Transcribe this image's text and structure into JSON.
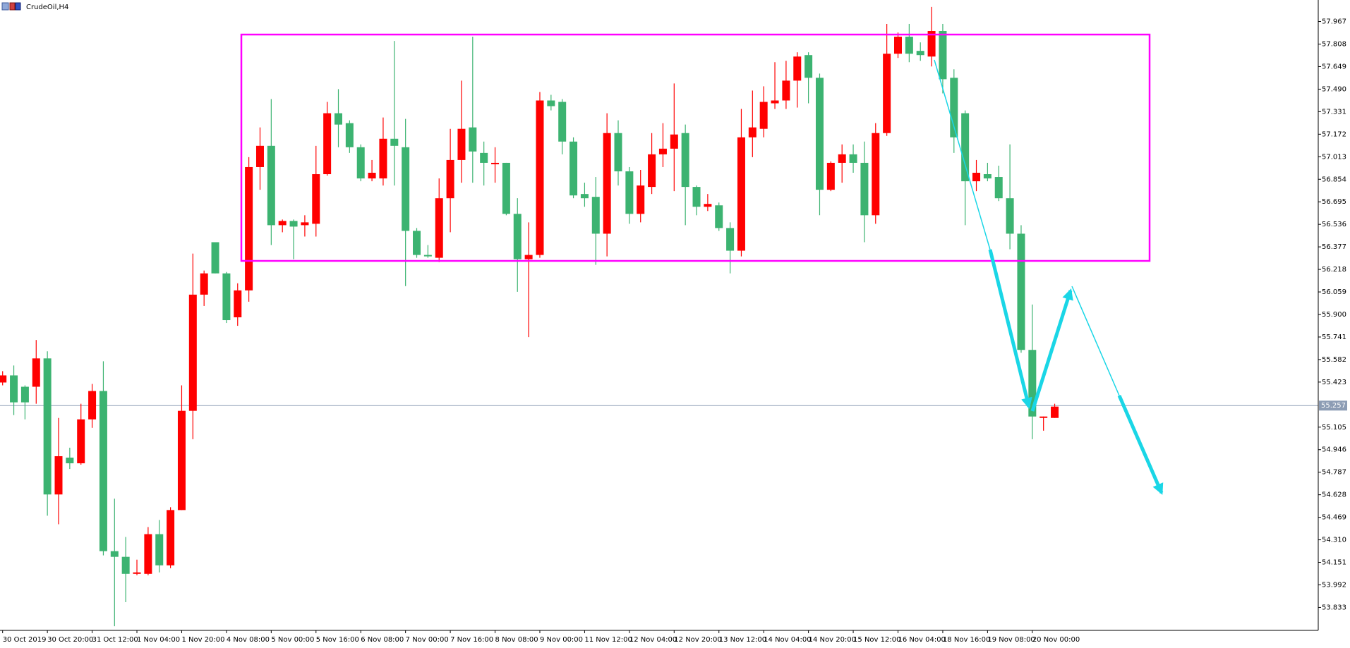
{
  "chart_data": {
    "type": "candlestick",
    "title": "CrudeOil,H4",
    "categories": [
      "30 Oct 2019",
      null,
      null,
      null,
      "30 Oct 20:00",
      null,
      null,
      null,
      "31 Oct 12:00",
      null,
      null,
      null,
      "1 Nov 04:00",
      null,
      null,
      null,
      "1 Nov 20:00",
      null,
      null,
      null,
      "4 Nov 08:00",
      null,
      null,
      null,
      "5 Nov 00:00",
      null,
      null,
      null,
      "5 Nov 16:00",
      null,
      null,
      null,
      "6 Nov 08:00",
      null,
      null,
      null,
      "7 Nov 00:00",
      null,
      null,
      null,
      "7 Nov 16:00",
      null,
      null,
      null,
      "8 Nov 08:00",
      null,
      null,
      null,
      "9 Nov 00:00",
      null,
      null,
      null,
      "11 Nov 12:00",
      null,
      null,
      null,
      "12 Nov 04:00",
      null,
      null,
      null,
      "12 Nov 20:00",
      null,
      null,
      null,
      "13 Nov 12:00",
      null,
      null,
      null,
      "14 Nov 04:00",
      null,
      null,
      null,
      "14 Nov 20:00",
      null,
      null,
      null,
      "15 Nov 12:00",
      null,
      null,
      null,
      "16 Nov 04:00",
      null,
      null,
      null,
      "18 Nov 16:00",
      null,
      null,
      null,
      "19 Nov 08:00",
      null,
      null,
      null,
      "20 Nov 00:00",
      null,
      null
    ],
    "open": [
      55.42,
      55.47,
      55.39,
      55.39,
      55.59,
      54.63,
      54.89,
      54.85,
      55.16,
      55.36,
      54.23,
      54.19,
      54.07,
      54.07,
      54.35,
      54.13,
      54.52,
      55.22,
      56.04,
      56.41,
      56.19,
      55.88,
      56.07,
      56.94,
      57.09,
      56.53,
      56.56,
      56.53,
      56.54,
      56.89,
      57.32,
      57.25,
      57.08,
      56.86,
      56.86,
      57.14,
      57.08,
      56.49,
      56.32,
      56.3,
      56.72,
      56.99,
      57.22,
      57.04,
      56.96,
      56.97,
      56.61,
      56.29,
      56.32,
      57.41,
      57.4,
      57.12,
      56.75,
      56.73,
      56.47,
      57.18,
      56.91,
      56.61,
      56.8,
      57.03,
      57.07,
      57.18,
      56.8,
      56.66,
      56.67,
      56.51,
      56.35,
      57.15,
      57.21,
      57.39,
      57.41,
      57.55,
      57.73,
      57.57,
      56.78,
      56.97,
      57.03,
      56.97,
      56.6,
      57.18,
      57.74,
      57.86,
      57.76,
      57.72,
      57.9,
      57.57,
      57.32,
      56.84,
      56.89,
      56.87,
      56.72,
      56.47,
      55.65,
      55.17,
      55.17
    ],
    "high": [
      55.5,
      55.54,
      55.4,
      55.72,
      55.64,
      55.17,
      54.96,
      55.27,
      55.41,
      55.57,
      54.6,
      54.33,
      54.17,
      54.4,
      54.45,
      54.54,
      55.4,
      56.33,
      56.21,
      56.41,
      56.2,
      56.12,
      57.01,
      57.22,
      57.42,
      56.57,
      56.57,
      56.6,
      57.09,
      57.4,
      57.49,
      57.27,
      57.1,
      56.99,
      57.29,
      57.83,
      57.28,
      56.51,
      56.39,
      56.86,
      57.21,
      57.55,
      57.86,
      57.12,
      57.08,
      56.97,
      56.72,
      56.55,
      57.47,
      57.45,
      57.42,
      57.15,
      56.83,
      56.87,
      57.32,
      57.27,
      56.94,
      56.92,
      57.18,
      57.25,
      57.53,
      57.24,
      56.81,
      56.75,
      56.69,
      56.55,
      57.35,
      57.48,
      57.51,
      57.68,
      57.69,
      57.75,
      57.75,
      57.6,
      56.98,
      57.1,
      57.1,
      57.12,
      57.25,
      57.95,
      57.89,
      57.95,
      57.82,
      58.07,
      57.95,
      57.63,
      57.34,
      56.99,
      56.97,
      56.95,
      57.1,
      56.53,
      55.97,
      55.18,
      55.27
    ],
    "low": [
      55.4,
      55.19,
      55.16,
      55.27,
      54.48,
      54.42,
      54.81,
      54.84,
      55.1,
      54.2,
      53.7,
      53.87,
      54.06,
      54.06,
      54.08,
      54.11,
      54.52,
      55.02,
      55.96,
      56.19,
      55.84,
      55.82,
      55.99,
      56.78,
      56.39,
      56.48,
      56.29,
      56.45,
      56.45,
      56.88,
      57.08,
      57.04,
      56.84,
      56.84,
      56.81,
      56.81,
      56.1,
      56.3,
      56.3,
      56.27,
      56.48,
      56.83,
      56.83,
      56.81,
      56.83,
      56.6,
      56.06,
      55.74,
      56.3,
      57.34,
      57.03,
      56.72,
      56.66,
      56.25,
      56.31,
      56.81,
      56.54,
      56.55,
      56.75,
      56.94,
      56.77,
      56.53,
      56.6,
      56.63,
      56.49,
      56.19,
      56.31,
      57.01,
      57.15,
      57.35,
      57.35,
      57.36,
      57.39,
      56.6,
      56.77,
      56.83,
      56.9,
      56.41,
      56.54,
      57.16,
      57.71,
      57.68,
      57.69,
      57.65,
      57.46,
      57.04,
      56.53,
      56.77,
      56.84,
      56.7,
      56.36,
      55.63,
      55.02,
      55.08,
      55.17
    ],
    "close": [
      55.47,
      55.28,
      55.28,
      55.59,
      54.63,
      54.9,
      54.85,
      55.16,
      55.36,
      54.23,
      54.19,
      54.07,
      54.08,
      54.35,
      54.13,
      54.52,
      55.22,
      56.04,
      56.19,
      56.19,
      55.86,
      56.07,
      56.94,
      57.09,
      56.53,
      56.56,
      56.52,
      56.55,
      56.89,
      57.32,
      57.24,
      57.08,
      56.86,
      56.9,
      57.14,
      57.09,
      56.49,
      56.32,
      56.31,
      56.72,
      56.99,
      57.21,
      57.05,
      56.97,
      56.97,
      56.61,
      56.29,
      56.32,
      57.41,
      57.37,
      57.12,
      56.74,
      56.72,
      56.47,
      57.18,
      56.91,
      56.61,
      56.81,
      57.03,
      57.07,
      57.17,
      56.8,
      56.66,
      56.68,
      56.51,
      56.35,
      57.15,
      57.22,
      57.4,
      57.41,
      57.55,
      57.72,
      57.57,
      56.78,
      56.97,
      57.03,
      56.97,
      56.6,
      57.18,
      57.74,
      57.86,
      57.74,
      57.73,
      57.9,
      57.56,
      57.15,
      56.84,
      56.9,
      56.86,
      56.72,
      56.47,
      55.65,
      55.18,
      55.18,
      55.25
    ],
    "up_color": "#ff0000",
    "down_color": "#3cb371",
    "ylim": [
      53.671,
      58.119
    ],
    "yticks": [
      57.967,
      57.808,
      57.649,
      {
        "value": 57.49,
        "label": "57.490"
      },
      57.331,
      57.172,
      57.013,
      56.854,
      56.695,
      56.536,
      56.377,
      56.218,
      56.059,
      {
        "value": 55.9,
        "label": "55.900"
      },
      55.741,
      55.582,
      55.423,
      55.105,
      54.946,
      54.787,
      54.628,
      54.469,
      {
        "value": 54.31,
        "label": "54.310"
      },
      54.151,
      53.992,
      53.833
    ],
    "current_price": 55.257,
    "grid": false
  }
}
